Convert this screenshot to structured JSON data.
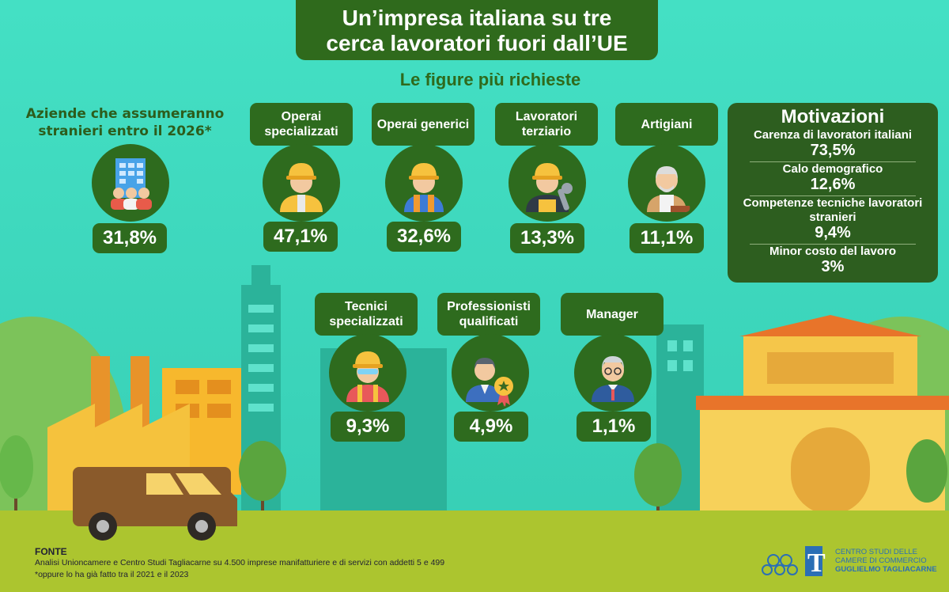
{
  "title": {
    "line1": "Un’impresa italiana su tre",
    "line2": "cerca lavoratori fuori dall’UE"
  },
  "subtitle": "Le figure più richieste",
  "hiring": {
    "label_line1": "Aziende che assumeranno",
    "label_line2": "stranieri entro il 2026*",
    "value": "31,8%",
    "icon": "office-building-people-icon"
  },
  "figures": [
    {
      "label": "Operai specializzati",
      "value": "47,1%",
      "icon": "construction-worker-icon"
    },
    {
      "label": "Operai generici",
      "value": "32,6%",
      "icon": "worker-helmet-icon"
    },
    {
      "label": "Lavoratori terziario",
      "value": "13,3%",
      "icon": "mechanic-wrench-icon"
    },
    {
      "label": "Artigiani",
      "value": "11,1%",
      "icon": "shoemaker-icon"
    },
    {
      "label": "Tecnici specializzati",
      "value": "9,3%",
      "icon": "technician-icon"
    },
    {
      "label": "Professionisti qualificati",
      "value": "4,9%",
      "icon": "professional-award-icon"
    },
    {
      "label": "Manager",
      "value": "1,1%",
      "icon": "manager-icon"
    }
  ],
  "motivations": {
    "title": "Motivazioni",
    "items": [
      {
        "label": "Carenza di lavoratori italiani",
        "value": "73,5%"
      },
      {
        "label": "Calo demografico",
        "value": "12,6%"
      },
      {
        "label": "Competenze tecniche lavoratori stranieri",
        "value": "9,4%"
      },
      {
        "label": "Minor costo del lavoro",
        "value": "3%"
      }
    ]
  },
  "source": {
    "heading": "FONTE",
    "line1": "Analisi Unioncamere e Centro Studi Tagliacarne su 4.500 imprese manifatturiere e di servizi con addetti 5 e 499",
    "line2": "*oppure lo ha già fatto tra il 2021 e il 2023"
  },
  "logo": {
    "line1": "CENTRO STUDI DELLE",
    "line2": "CAMERE DI COMMERCIO",
    "line3": "GUGLIELMO TAGLIACARNE"
  },
  "colors": {
    "dark_green": "#2e6b1e",
    "teal_bg": "#3fd6bd",
    "grass": "#a9c42c",
    "orange_roof": "#e8742a"
  }
}
